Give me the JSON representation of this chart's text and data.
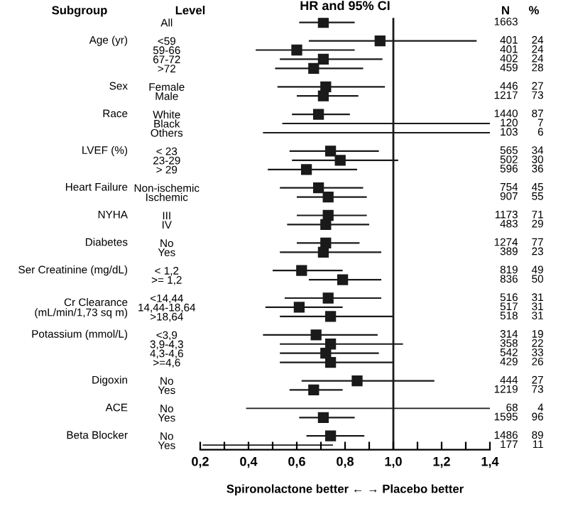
{
  "chart_data": {
    "type": "scatter",
    "orientation": "horizontal",
    "title": "HR and 95% CI",
    "xlabel": "Spironolactone better ← → Placebo better",
    "categories": [
      "All",
      null,
      "<59",
      "59-66",
      "67-72",
      ">72",
      null,
      "Female",
      "Male",
      null,
      "White",
      "Black",
      "Others",
      null,
      "< 23",
      "23-29",
      "> 29",
      null,
      "Non-ischemic",
      "Ischemic",
      null,
      "III",
      "IV",
      null,
      "No",
      "Yes",
      null,
      "< 1,2",
      ">= 1,2",
      null,
      "<14,44",
      "14,44-18,64",
      ">18,64",
      null,
      "<3,9",
      "3,9-4,3",
      "4,3-4,6",
      ">=4,6",
      null,
      "No",
      "Yes",
      null,
      "No",
      "Yes",
      null,
      "No",
      "Yes"
    ],
    "series": [
      {
        "color": "#1a1a1a",
        "values": [
          0.71,
          null,
          0.945,
          0.6,
          0.71,
          0.67,
          null,
          0.72,
          0.71,
          null,
          0.69,
          null,
          null,
          null,
          0.74,
          0.78,
          0.64,
          null,
          0.69,
          0.73,
          null,
          0.73,
          0.72,
          null,
          0.72,
          0.71,
          null,
          0.62,
          0.79,
          null,
          0.73,
          0.61,
          0.74,
          null,
          0.68,
          0.74,
          0.72,
          0.74,
          null,
          0.85,
          0.67,
          null,
          null,
          0.71,
          null,
          0.74,
          null
        ],
        "errors": [
          [
            0.61,
            0.84
          ],
          null,
          [
            0.65,
            1.345
          ],
          [
            0.43,
            0.84
          ],
          [
            0.53,
            0.955
          ],
          [
            0.51,
            0.875
          ],
          null,
          [
            0.52,
            0.965
          ],
          [
            0.6,
            0.855
          ],
          null,
          [
            0.58,
            0.82
          ],
          null,
          null,
          null,
          [
            0.57,
            0.94
          ],
          [
            0.58,
            1.02
          ],
          [
            0.48,
            0.85
          ],
          null,
          [
            0.53,
            0.875
          ],
          [
            0.6,
            0.89
          ],
          null,
          [
            0.6,
            0.89
          ],
          [
            0.56,
            0.9
          ],
          null,
          [
            0.6,
            0.86
          ],
          [
            0.53,
            0.95
          ],
          null,
          [
            0.5,
            0.79
          ],
          [
            0.65,
            0.95
          ],
          null,
          [
            0.55,
            0.95
          ],
          [
            0.47,
            0.79
          ],
          [
            0.53,
            1.0
          ],
          null,
          [
            0.46,
            0.935
          ],
          [
            0.53,
            1.04
          ],
          [
            0.53,
            0.94
          ],
          [
            0.53,
            1.0
          ],
          null,
          [
            0.62,
            1.17
          ],
          [
            0.57,
            0.79
          ],
          null,
          null,
          [
            0.61,
            0.84
          ],
          null,
          [
            0.64,
            0.88
          ],
          null
        ]
      },
      {
        "type": "bar",
        "color": "#1a1a1a",
        "base": [
          null,
          null,
          null,
          null,
          null,
          null,
          null,
          null,
          null,
          null,
          null,
          0.54,
          0.46,
          null,
          null,
          null,
          null,
          null,
          null,
          null,
          null,
          null,
          null,
          null,
          null,
          null,
          null,
          null,
          null,
          null,
          null,
          null,
          null,
          null,
          null,
          null,
          null,
          null,
          null,
          null,
          null,
          null,
          0.39,
          null,
          null,
          null,
          0.21
        ],
        "values": [
          null,
          null,
          null,
          null,
          null,
          null,
          null,
          null,
          null,
          null,
          null,
          0.86,
          0.94,
          null,
          null,
          null,
          null,
          null,
          null,
          null,
          null,
          null,
          null,
          null,
          null,
          null,
          null,
          null,
          null,
          null,
          null,
          null,
          null,
          null,
          null,
          null,
          null,
          null,
          null,
          null,
          null,
          null,
          1.01,
          null,
          null,
          null,
          0.54
        ]
      }
    ],
    "marker": "square",
    "xlim": [
      0.2,
      1.4
    ],
    "xticks": [
      {
        "value": 0.2,
        "label": "0,2"
      },
      {
        "value": 0.3,
        "label": null
      },
      {
        "value": 0.4,
        "label": "0,4"
      },
      {
        "value": 0.5,
        "label": null
      },
      {
        "value": 0.6,
        "label": "0,6"
      },
      {
        "value": 0.7,
        "label": null
      },
      {
        "value": 0.8,
        "label": "0,8"
      },
      {
        "value": 0.9,
        "label": null
      },
      {
        "value": 1.0,
        "label": "1,0"
      },
      {
        "value": 1.1,
        "label": null
      },
      {
        "value": 1.2,
        "label": "1,2"
      },
      {
        "value": 1.3,
        "label": null
      },
      {
        "value": 1.4,
        "label": "1,4"
      }
    ],
    "ref_lines": [
      {
        "axis": "x",
        "value": 1.0,
        "color": "#1a1a1a"
      }
    ],
    "annotations": [
      "Subgroup",
      "Level",
      "N",
      "%",
      "Age (yr)",
      "Sex",
      "Race",
      "LVEF (%)",
      "Heart Failure",
      "NYHA",
      "Diabetes",
      "Ser Creatinine (mg/dL)",
      "Cr Clearance\n(mL/min/1,73 sq m)",
      "Potassium (mmol/L)",
      "Digoxin",
      "ACE",
      "Beta Blocker",
      "1663",
      "401 24",
      "401 24",
      "402 24",
      "459 28",
      "446 27",
      "1217 73",
      "1440 87",
      "120 7",
      "103 6",
      "565 34",
      "502 30",
      "596 36",
      "754 45",
      "907 55",
      "1173 71",
      "483 29",
      "1274 77",
      "389 23",
      "819 49",
      "836 50",
      "516 31",
      "517 31",
      "518 31",
      "314 19",
      "358 22",
      "542 33",
      "429 26",
      "444 27",
      "1219 73",
      "68 4",
      "1595 96",
      "1486 89",
      "177 11"
    ],
    "grid": false,
    "legend": false
  }
}
